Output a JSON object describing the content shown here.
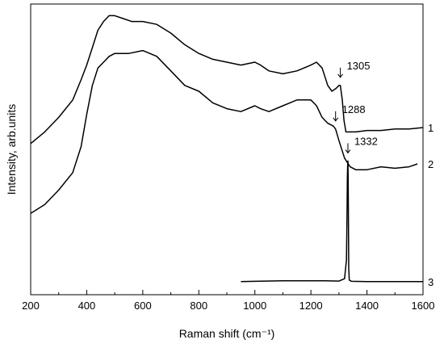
{
  "chart_data": {
    "type": "line",
    "title": "",
    "xlabel": "Raman shift (cm⁻¹)",
    "ylabel": "Intensity, arb.units",
    "xlim": [
      200,
      1600
    ],
    "ylim": [
      0,
      100
    ],
    "x_ticks": [
      200,
      400,
      600,
      800,
      1000,
      1200,
      1400,
      1600
    ],
    "y_ticks_shown": false,
    "grid": false,
    "legend": "none",
    "series": [
      {
        "name": "1",
        "x": [
          200,
          250,
          300,
          350,
          380,
          400,
          420,
          440,
          460,
          480,
          500,
          530,
          560,
          600,
          650,
          700,
          750,
          800,
          850,
          900,
          950,
          1000,
          1020,
          1050,
          1100,
          1150,
          1200,
          1220,
          1240,
          1260,
          1275,
          1290,
          1300,
          1305,
          1312,
          1318,
          1325,
          1335,
          1360,
          1400,
          1450,
          1500,
          1550,
          1600
        ],
        "y": [
          52,
          56,
          61,
          67,
          74,
          79,
          85,
          91,
          94,
          96,
          96,
          95,
          94,
          94,
          93,
          90,
          86,
          83,
          81,
          80,
          79,
          80,
          79,
          77,
          76,
          77,
          79,
          80,
          78,
          72,
          70,
          71,
          72,
          72,
          67,
          60,
          56,
          56,
          56,
          56.5,
          56.5,
          57,
          57,
          57.5
        ]
      },
      {
        "name": "2",
        "x": [
          200,
          250,
          300,
          350,
          380,
          400,
          420,
          440,
          460,
          480,
          500,
          550,
          600,
          650,
          700,
          750,
          800,
          850,
          900,
          950,
          1000,
          1020,
          1050,
          1100,
          1150,
          1200,
          1220,
          1240,
          1260,
          1280,
          1288,
          1300,
          1320,
          1340,
          1360,
          1400,
          1450,
          1500,
          1550,
          1580
        ],
        "y": [
          28,
          31,
          36,
          42,
          51,
          62,
          72,
          78,
          80,
          82,
          83,
          83,
          84,
          82,
          77,
          72,
          70,
          66,
          64,
          63,
          65,
          64,
          63,
          65,
          67,
          67,
          65,
          61,
          59,
          58,
          57,
          53,
          47,
          44,
          43,
          43,
          44,
          43.5,
          44,
          45
        ]
      },
      {
        "name": "3",
        "x": [
          950,
          1000,
          1100,
          1200,
          1250,
          1300,
          1320,
          1327,
          1329,
          1330,
          1331,
          1332,
          1333,
          1334,
          1335,
          1337,
          1345,
          1400,
          1500,
          1600
        ],
        "y": [
          4.5,
          4.6,
          4.8,
          4.8,
          4.8,
          4.7,
          5.5,
          12,
          28,
          40,
          44,
          46,
          40,
          22,
          9,
          5,
          4.6,
          4.5,
          4.5,
          4.5
        ]
      }
    ],
    "annotations": [
      {
        "text": "1305",
        "x": 1305,
        "y": 72
      },
      {
        "text": "1288",
        "x": 1288,
        "y": 57
      },
      {
        "text": "1332",
        "x": 1332,
        "y": 46
      }
    ],
    "series_labels": [
      "1",
      "2",
      "3"
    ]
  }
}
